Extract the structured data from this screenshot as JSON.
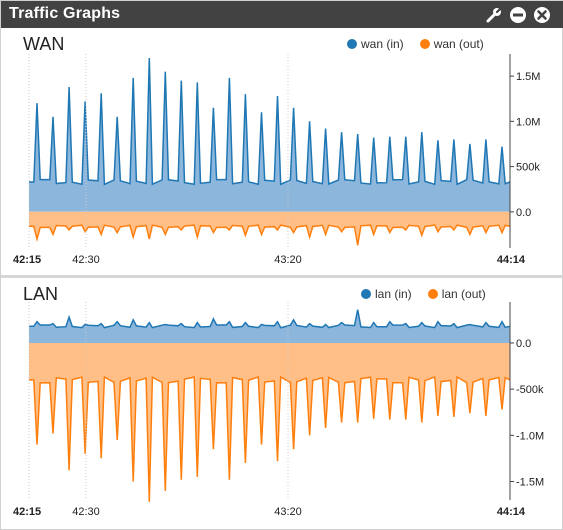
{
  "widget": {
    "title": "Traffic Graphs",
    "colors": {
      "titlebar": "#424242",
      "in": "#1f77b4",
      "out": "#ff7f0e",
      "in_fill": "#8db6dc",
      "out_fill": "#ffbf87"
    },
    "icons": [
      "wrench-icon",
      "minimize-icon",
      "close-icon"
    ]
  },
  "chart_data": [
    {
      "type": "area",
      "title": "WAN",
      "series": [
        {
          "name": "wan (in)",
          "color": "#1f77b4"
        },
        {
          "name": "wan (out)",
          "color": "#ff7f0e"
        }
      ],
      "x_ticks": [
        "42:15",
        "42:30",
        "43:20",
        "44:14"
      ],
      "y_ticks": [
        "1.5M",
        "1.0M",
        "500k",
        "0.0"
      ],
      "ylim": [
        -400000,
        1700000
      ],
      "in_base": 330000,
      "in_peaks": [
        1200000,
        1050000,
        1380000,
        1220000,
        1310000,
        1050000,
        1480000,
        1700000,
        1550000,
        1450000,
        1430000,
        1150000,
        1480000,
        1300000,
        1100000,
        1280000,
        1150000,
        1000000,
        920000,
        880000,
        860000,
        820000,
        830000,
        830000,
        880000,
        790000,
        800000,
        750000,
        800000,
        720000
      ],
      "out_base": -160000,
      "out_dips": [
        -300000,
        -250000,
        -200000,
        -220000,
        -250000,
        -230000,
        -280000,
        -300000,
        -250000,
        -200000,
        -280000,
        -230000,
        -200000,
        -260000,
        -250000,
        -200000,
        -230000,
        -280000,
        -250000,
        -220000,
        -370000,
        -250000,
        -230000,
        -200000,
        -260000,
        -220000,
        -200000,
        -250000,
        -230000,
        -230000
      ]
    },
    {
      "type": "area",
      "title": "LAN",
      "series": [
        {
          "name": "lan (in)",
          "color": "#1f77b4"
        },
        {
          "name": "lan (out)",
          "color": "#ff7f0e"
        }
      ],
      "x_ticks": [
        "42:15",
        "42:30",
        "43:20",
        "44:14"
      ],
      "y_ticks": [
        "0.0",
        "-500k",
        "-1.0M",
        "-1.5M"
      ],
      "ylim": [
        -1700000,
        400000
      ],
      "in_base": 180000,
      "in_peaks": [
        230000,
        210000,
        280000,
        200000,
        210000,
        230000,
        250000,
        220000,
        200000,
        210000,
        220000,
        260000,
        230000,
        220000,
        200000,
        230000,
        250000,
        210000,
        200000,
        220000,
        360000,
        220000,
        230000,
        210000,
        220000,
        230000,
        210000,
        200000,
        220000,
        230000
      ],
      "out_base": -400000,
      "out_dips": [
        -1100000,
        -980000,
        -1380000,
        -1200000,
        -1250000,
        -1050000,
        -1500000,
        -1720000,
        -1600000,
        -1480000,
        -1450000,
        -1150000,
        -1480000,
        -1300000,
        -1100000,
        -1280000,
        -1150000,
        -1000000,
        -920000,
        -860000,
        -860000,
        -820000,
        -830000,
        -830000,
        -860000,
        -790000,
        -800000,
        -760000,
        -790000,
        -720000
      ]
    }
  ]
}
